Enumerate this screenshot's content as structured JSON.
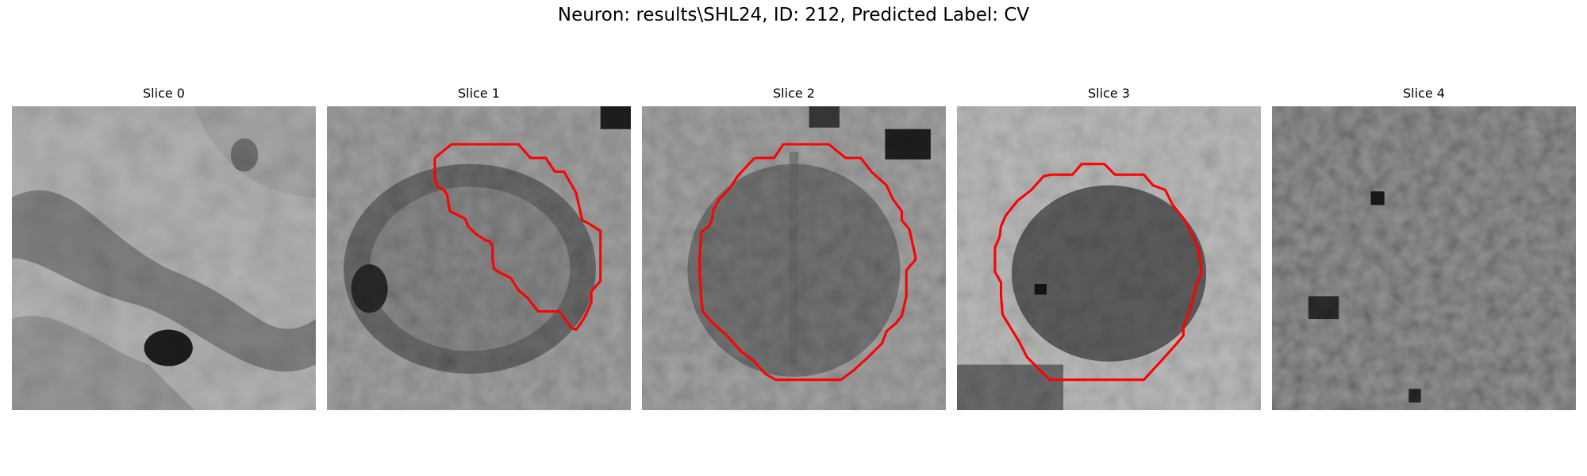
{
  "figure": {
    "title": "Neuron: results\\SHL24, ID: 212, Predicted Label: CV"
  },
  "slices": [
    {
      "title": "Slice 0",
      "has_contour": false
    },
    {
      "title": "Slice 1",
      "has_contour": true
    },
    {
      "title": "Slice 2",
      "has_contour": true
    },
    {
      "title": "Slice 3",
      "has_contour": true
    },
    {
      "title": "Slice 4",
      "has_contour": false
    }
  ],
  "colors": {
    "contour": "#ff0000",
    "background": "#ffffff"
  }
}
